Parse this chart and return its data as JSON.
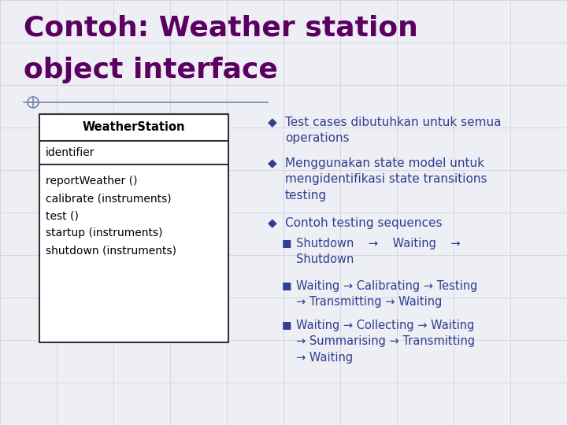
{
  "bg_color": "#eeeef5",
  "title_line1": "Contoh: Weather station",
  "title_line2": "object interface",
  "title_color": "#5b0060",
  "title_fontsize": 26,
  "box_title": "WeatherStation",
  "box_attr": "identifier",
  "box_methods": [
    "reportWeather ()",
    "calibrate (instruments)",
    "test ()",
    "startup (instruments)",
    "shutdown (instruments)"
  ],
  "bullet_color": "#2e3f8f",
  "bullet_fontsize": 11.0,
  "sub_bullet_fontsize": 10.5,
  "grid_color": "#ccccdd",
  "box_text_color": "#000000",
  "box_title_color": "#000000",
  "circle_color": "#7788aa"
}
